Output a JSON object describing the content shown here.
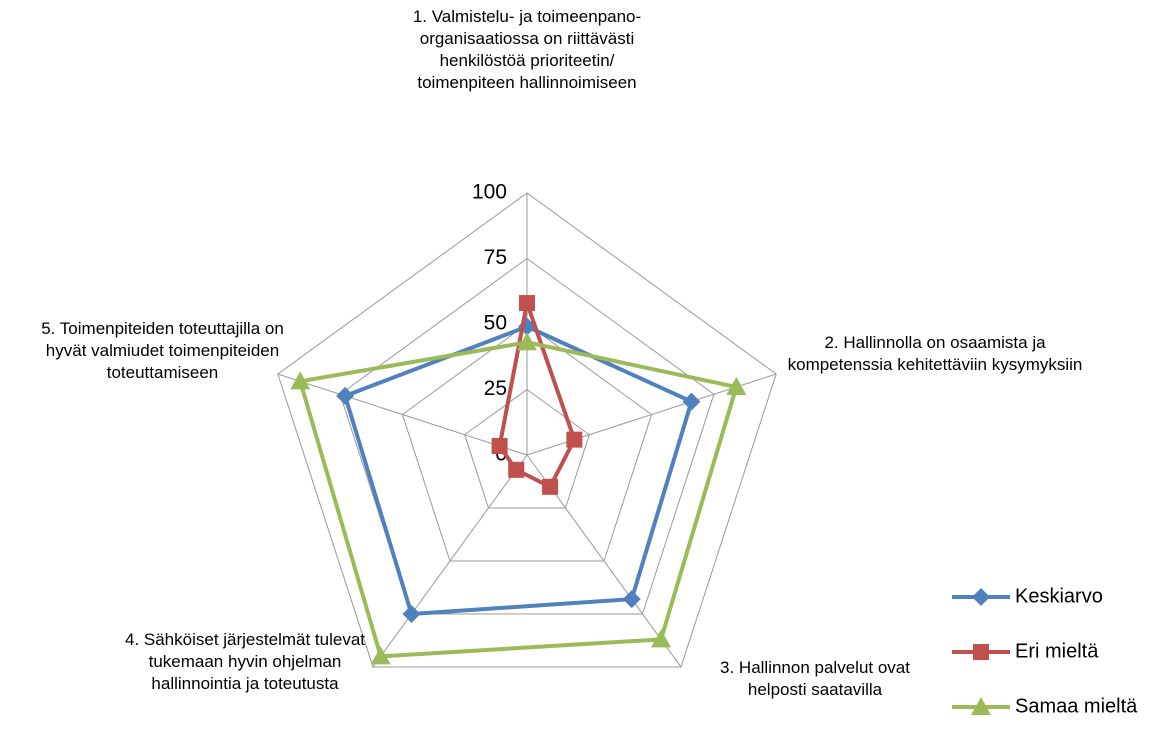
{
  "chart_data": {
    "type": "radar",
    "categories": [
      "1. Valmistelu- ja toimeenpano-organisaatiossa on riittävästi henkilöstöä prioriteetin/ toimenpiteen hallinnoimiseen",
      "2. Hallinnolla on osaamista ja kompetenssia kehitettäviin kysymyksiin",
      "3. Hallinnon palvelut ovat helposti saatavilla",
      "4. Sähköiset järjestelmät tulevat tukemaan hyvin ohjelman hallinnointia ja toteutusta",
      "5. Toimenpiteiden toteuttajilla on hyvät valmiudet toimenpiteiden toteuttamiseen"
    ],
    "series": [
      {
        "name": "Keskiarvo",
        "color": "#4f81bd",
        "marker": "diamond",
        "values": [
          49,
          66,
          68,
          75,
          73
        ]
      },
      {
        "name": "Eri mieltä",
        "color": "#c0504d",
        "marker": "square",
        "values": [
          58,
          19,
          15,
          7,
          11
        ]
      },
      {
        "name": "Samaa mieltä",
        "color": "#9bbb59",
        "marker": "triangle",
        "values": [
          43,
          84,
          87,
          95,
          91
        ]
      }
    ],
    "rlim": [
      0,
      100
    ],
    "rticks": [
      0,
      25,
      50,
      75,
      100
    ],
    "grid": true,
    "legend": "lower right"
  }
}
